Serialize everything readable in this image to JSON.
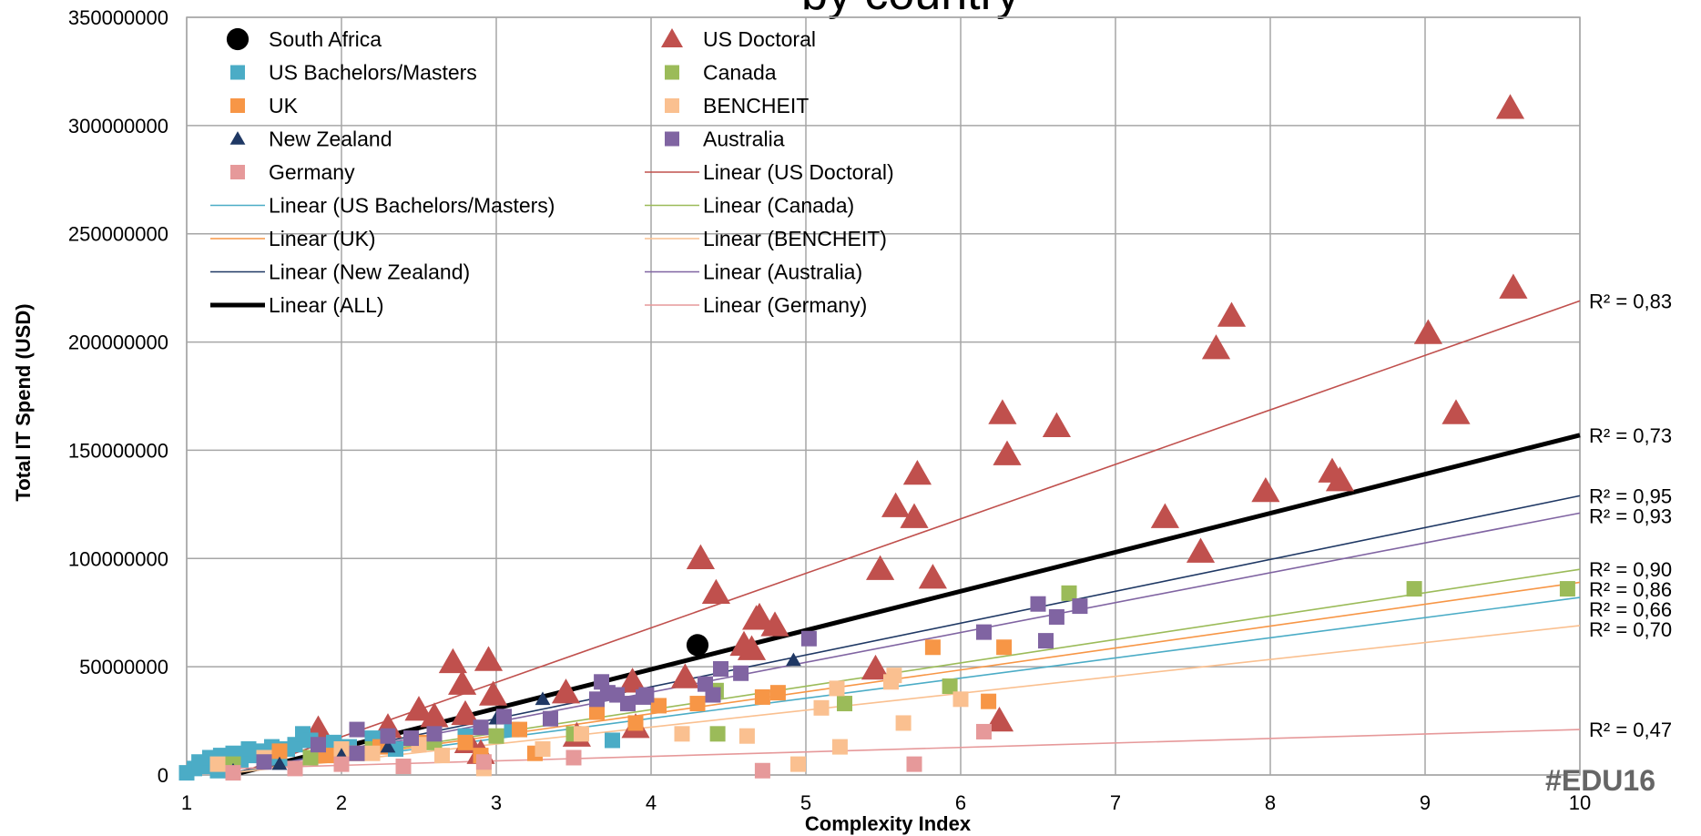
{
  "chart_data": {
    "type": "scatter",
    "title": "by country",
    "xlabel": "Complexity Index",
    "ylabel": "Total IT Spend (USD)",
    "xlim": [
      1,
      10
    ],
    "ylim": [
      0,
      350000000
    ],
    "xticks": [
      "1",
      "2",
      "3",
      "4",
      "5",
      "6",
      "7",
      "8",
      "9",
      "10"
    ],
    "yticks": [
      "0",
      "50000000",
      "100000000",
      "150000000",
      "200000000",
      "250000000",
      "300000000",
      "350000000"
    ],
    "grid": true,
    "legend_position": "top-left",
    "watermark": "#EDU16",
    "series": [
      {
        "name": "South Africa",
        "marker": "circle",
        "color": "#000000",
        "points": [
          [
            4.3,
            60000000
          ]
        ]
      },
      {
        "name": "US Doctoral",
        "marker": "triangle",
        "color": "#C0504D",
        "points": [
          [
            1.85,
            21000000
          ],
          [
            2.3,
            22000000
          ],
          [
            2.5,
            30000000
          ],
          [
            2.6,
            27000000
          ],
          [
            2.72,
            52000000
          ],
          [
            2.78,
            42000000
          ],
          [
            2.8,
            28000000
          ],
          [
            2.82,
            15000000
          ],
          [
            2.9,
            10000000
          ],
          [
            2.95,
            53000000
          ],
          [
            2.98,
            37000000
          ],
          [
            3.45,
            38000000
          ],
          [
            3.52,
            18000000
          ],
          [
            3.88,
            43000000
          ],
          [
            3.9,
            22000000
          ],
          [
            4.22,
            45000000
          ],
          [
            4.32,
            100000000
          ],
          [
            4.42,
            84000000
          ],
          [
            4.6,
            60000000
          ],
          [
            4.65,
            58000000
          ],
          [
            4.68,
            72000000
          ],
          [
            4.7,
            73000000
          ],
          [
            4.8,
            69000000
          ],
          [
            5.45,
            49000000
          ],
          [
            5.48,
            95000000
          ],
          [
            5.58,
            124000000
          ],
          [
            5.7,
            119000000
          ],
          [
            5.72,
            139000000
          ],
          [
            5.82,
            91000000
          ],
          [
            6.25,
            25000000
          ],
          [
            6.27,
            167000000
          ],
          [
            6.3,
            148000000
          ],
          [
            6.62,
            161000000
          ],
          [
            7.32,
            119000000
          ],
          [
            7.55,
            103000000
          ],
          [
            7.65,
            197000000
          ],
          [
            7.75,
            212000000
          ],
          [
            7.97,
            131000000
          ],
          [
            8.4,
            140000000
          ],
          [
            8.45,
            136000000
          ],
          [
            9.02,
            204000000
          ],
          [
            9.2,
            167000000
          ],
          [
            9.55,
            308000000
          ],
          [
            9.57,
            225000000
          ]
        ]
      },
      {
        "name": "US Bachelors/Masters",
        "marker": "square",
        "color": "#4BACC6",
        "points": [
          [
            1.0,
            1000000
          ],
          [
            1.05,
            3000000
          ],
          [
            1.08,
            6000000
          ],
          [
            1.1,
            4000000
          ],
          [
            1.15,
            8000000
          ],
          [
            1.2,
            2000000
          ],
          [
            1.22,
            9000000
          ],
          [
            1.25,
            5000000
          ],
          [
            1.3,
            10000000
          ],
          [
            1.35,
            7000000
          ],
          [
            1.4,
            12000000
          ],
          [
            1.45,
            9000000
          ],
          [
            1.5,
            11000000
          ],
          [
            1.55,
            13000000
          ],
          [
            1.6,
            8000000
          ],
          [
            1.65,
            12000000
          ],
          [
            1.7,
            14000000
          ],
          [
            1.75,
            19000000
          ],
          [
            1.8,
            16000000
          ],
          [
            1.85,
            12000000
          ],
          [
            1.9,
            10000000
          ],
          [
            1.95,
            15000000
          ],
          [
            2.05,
            13000000
          ],
          [
            2.2,
            17000000
          ],
          [
            2.35,
            12000000
          ],
          [
            2.6,
            16000000
          ],
          [
            2.8,
            18000000
          ],
          [
            3.1,
            21000000
          ],
          [
            3.75,
            16000000
          ]
        ]
      },
      {
        "name": "Canada",
        "marker": "square",
        "color": "#9BBB59",
        "points": [
          [
            1.3,
            5000000
          ],
          [
            1.8,
            8000000
          ],
          [
            2.2,
            12000000
          ],
          [
            2.6,
            15000000
          ],
          [
            3.0,
            18000000
          ],
          [
            3.5,
            19000000
          ],
          [
            4.42,
            39000000
          ],
          [
            4.43,
            19000000
          ],
          [
            5.25,
            33000000
          ],
          [
            5.93,
            41000000
          ],
          [
            6.7,
            84000000
          ],
          [
            8.93,
            86000000
          ],
          [
            9.92,
            86000000
          ]
        ]
      },
      {
        "name": "UK",
        "marker": "square",
        "color": "#F79646",
        "points": [
          [
            1.6,
            11000000
          ],
          [
            1.9,
            9000000
          ],
          [
            2.1,
            10000000
          ],
          [
            2.25,
            13000000
          ],
          [
            2.5,
            15000000
          ],
          [
            2.8,
            15000000
          ],
          [
            2.9,
            9000000
          ],
          [
            3.15,
            21000000
          ],
          [
            3.25,
            10000000
          ],
          [
            3.65,
            29000000
          ],
          [
            3.9,
            24000000
          ],
          [
            4.05,
            32000000
          ],
          [
            4.3,
            33000000
          ],
          [
            4.72,
            36000000
          ],
          [
            4.82,
            38000000
          ],
          [
            5.82,
            59000000
          ],
          [
            6.28,
            59000000
          ],
          [
            6.18,
            34000000
          ]
        ]
      },
      {
        "name": "BENCHEIT",
        "marker": "square",
        "color": "#FAC090",
        "points": [
          [
            1.2,
            5000000
          ],
          [
            1.5,
            8000000
          ],
          [
            2.0,
            12000000
          ],
          [
            2.2,
            10000000
          ],
          [
            2.5,
            14000000
          ],
          [
            2.65,
            9000000
          ],
          [
            2.92,
            3000000
          ],
          [
            3.3,
            12000000
          ],
          [
            3.55,
            19000000
          ],
          [
            4.2,
            19000000
          ],
          [
            4.62,
            18000000
          ],
          [
            4.95,
            5000000
          ],
          [
            5.1,
            31000000
          ],
          [
            5.2,
            40000000
          ],
          [
            5.22,
            13000000
          ],
          [
            5.55,
            43000000
          ],
          [
            5.57,
            46000000
          ],
          [
            5.63,
            24000000
          ],
          [
            6.0,
            35000000
          ]
        ]
      },
      {
        "name": "New Zealand",
        "marker": "triangle",
        "color": "#1F3864",
        "points": [
          [
            1.3,
            2000000
          ],
          [
            1.6,
            5000000
          ],
          [
            2.0,
            9000000
          ],
          [
            2.3,
            13000000
          ],
          [
            3.0,
            26000000
          ],
          [
            3.3,
            35000000
          ],
          [
            4.92,
            53000000
          ]
        ]
      },
      {
        "name": "Australia",
        "marker": "square",
        "color": "#8064A2",
        "points": [
          [
            1.5,
            6000000
          ],
          [
            1.85,
            14000000
          ],
          [
            2.1,
            10000000
          ],
          [
            2.1,
            21000000
          ],
          [
            2.3,
            18000000
          ],
          [
            2.45,
            17000000
          ],
          [
            2.6,
            19000000
          ],
          [
            2.9,
            22000000
          ],
          [
            3.05,
            27000000
          ],
          [
            3.35,
            26000000
          ],
          [
            3.65,
            35000000
          ],
          [
            3.68,
            43000000
          ],
          [
            3.72,
            38000000
          ],
          [
            3.78,
            37000000
          ],
          [
            3.85,
            33000000
          ],
          [
            3.95,
            36000000
          ],
          [
            3.97,
            37000000
          ],
          [
            4.35,
            42000000
          ],
          [
            4.4,
            37000000
          ],
          [
            4.45,
            49000000
          ],
          [
            4.58,
            47000000
          ],
          [
            5.02,
            63000000
          ],
          [
            6.15,
            66000000
          ],
          [
            6.5,
            79000000
          ],
          [
            6.62,
            73000000
          ],
          [
            6.77,
            78000000
          ],
          [
            6.55,
            62000000
          ]
        ]
      },
      {
        "name": "Germany",
        "marker": "square",
        "color": "#E6999A",
        "points": [
          [
            1.3,
            1000000
          ],
          [
            1.7,
            3000000
          ],
          [
            2.0,
            5000000
          ],
          [
            2.4,
            4000000
          ],
          [
            2.92,
            6000000
          ],
          [
            3.5,
            8000000
          ],
          [
            4.72,
            2000000
          ],
          [
            5.7,
            5000000
          ],
          [
            6.15,
            20000000
          ]
        ]
      }
    ],
    "trendlines": [
      {
        "name": "Linear (US Doctoral)",
        "color": "#C0504D",
        "width": 1.6,
        "x": [
          1.3,
          10
        ],
        "y": [
          0,
          219000000
        ],
        "r2": "R² = 0,83"
      },
      {
        "name": "Linear (ALL)",
        "color": "#000000",
        "width": 5,
        "x": [
          1.35,
          10
        ],
        "y": [
          1000000,
          157000000
        ],
        "r2": "R² = 0,73"
      },
      {
        "name": "Linear (New Zealand)",
        "color": "#1F3864",
        "width": 1.6,
        "x": [
          1.3,
          10
        ],
        "y": [
          1000000,
          129000000
        ],
        "r2": "R² = 0,95"
      },
      {
        "name": "Linear (Australia)",
        "color": "#8064A2",
        "width": 1.6,
        "x": [
          1.3,
          10
        ],
        "y": [
          1000000,
          121000000
        ],
        "r2": "R² = 0,93"
      },
      {
        "name": "Linear (Canada)",
        "color": "#9BBB59",
        "width": 1.6,
        "x": [
          1.3,
          10
        ],
        "y": [
          1000000,
          95000000
        ],
        "r2": "R² = 0,90"
      },
      {
        "name": "Linear (UK)",
        "color": "#F79646",
        "width": 1.6,
        "x": [
          1.3,
          10
        ],
        "y": [
          1000000,
          89000000
        ],
        "r2": "R² = 0,86"
      },
      {
        "name": "Linear (US Bachelors/Masters)",
        "color": "#4BACC6",
        "width": 1.6,
        "x": [
          1.3,
          10
        ],
        "y": [
          1000000,
          82000000
        ],
        "r2": "R² = 0,66"
      },
      {
        "name": "Linear (BENCHEIT)",
        "color": "#FAC090",
        "width": 1.6,
        "x": [
          1.3,
          10
        ],
        "y": [
          1000000,
          69000000
        ],
        "r2": "R² = 0,70"
      },
      {
        "name": "Linear (Germany)",
        "color": "#E6999A",
        "width": 1.6,
        "x": [
          1.3,
          10
        ],
        "y": [
          3000000,
          21000000
        ],
        "r2": "R² = 0,47"
      }
    ],
    "legend": [
      {
        "label": "South Africa",
        "kind": "circle",
        "color": "#000000"
      },
      {
        "label": "US Doctoral",
        "kind": "triangle",
        "color": "#C0504D"
      },
      {
        "label": "US Bachelors/Masters",
        "kind": "square",
        "color": "#4BACC6"
      },
      {
        "label": "Canada",
        "kind": "square",
        "color": "#9BBB59"
      },
      {
        "label": "UK",
        "kind": "square",
        "color": "#F79646"
      },
      {
        "label": "BENCHEIT",
        "kind": "square",
        "color": "#FAC090"
      },
      {
        "label": "New Zealand",
        "kind": "triangle",
        "color": "#1F3864"
      },
      {
        "label": "Australia",
        "kind": "square",
        "color": "#8064A2"
      },
      {
        "label": "Germany",
        "kind": "square",
        "color": "#E6999A"
      },
      {
        "label": "Linear (US Doctoral)",
        "kind": "line",
        "color": "#C0504D"
      },
      {
        "label": "Linear (US Bachelors/Masters)",
        "kind": "line",
        "color": "#4BACC6"
      },
      {
        "label": "Linear (Canada)",
        "kind": "line",
        "color": "#9BBB59"
      },
      {
        "label": "Linear (UK)",
        "kind": "line",
        "color": "#F79646"
      },
      {
        "label": "Linear (BENCHEIT)",
        "kind": "line",
        "color": "#FAC090"
      },
      {
        "label": "Linear (New Zealand)",
        "kind": "line",
        "color": "#1F3864"
      },
      {
        "label": "Linear (Australia)",
        "kind": "line",
        "color": "#8064A2"
      },
      {
        "label": "Linear (ALL)",
        "kind": "thickline",
        "color": "#000000"
      },
      {
        "label": "Linear (Germany)",
        "kind": "line",
        "color": "#E6999A"
      }
    ]
  }
}
